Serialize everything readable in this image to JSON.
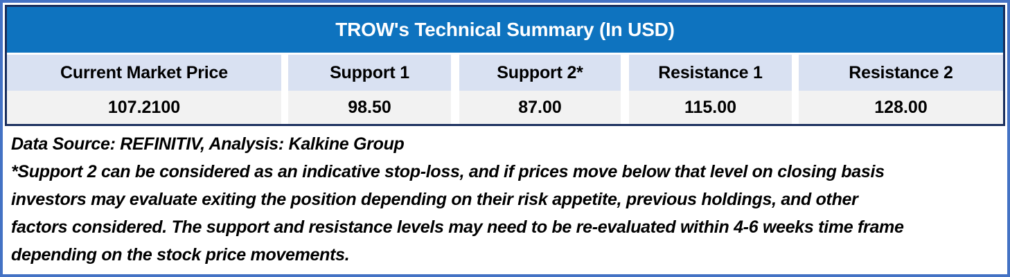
{
  "table": {
    "title": "TROW's Technical Summary (In USD)",
    "columns": [
      {
        "header": "Current Market Price",
        "value": "107.2100"
      },
      {
        "header": "Support 1",
        "value": "98.50"
      },
      {
        "header": "Support 2*",
        "value": "87.00"
      },
      {
        "header": "Resistance 1",
        "value": "115.00"
      },
      {
        "header": "Resistance 2",
        "value": "128.00"
      }
    ]
  },
  "footnotes": {
    "source_line": "Data Source: REFINITIV, Analysis: Kalkine Group",
    "note_lines": [
      "*Support 2 can be considered as an indicative stop-loss, and if prices move below that level on closing basis",
      "investors may evaluate exiting the position depending on their risk appetite, previous holdings, and other",
      "factors considered. The support and resistance levels may need to be re-evaluated within 4-6 weeks time frame",
      "depending on the stock price movements."
    ]
  },
  "colors": {
    "outer_border": "#4472C4",
    "table_border": "#1A2F5E",
    "title_bg": "#0E73BF",
    "title_text": "#FFFFFF",
    "header_cell_bg": "#D9E1F2",
    "value_cell_bg": "#F2F2F2",
    "text": "#000000"
  }
}
